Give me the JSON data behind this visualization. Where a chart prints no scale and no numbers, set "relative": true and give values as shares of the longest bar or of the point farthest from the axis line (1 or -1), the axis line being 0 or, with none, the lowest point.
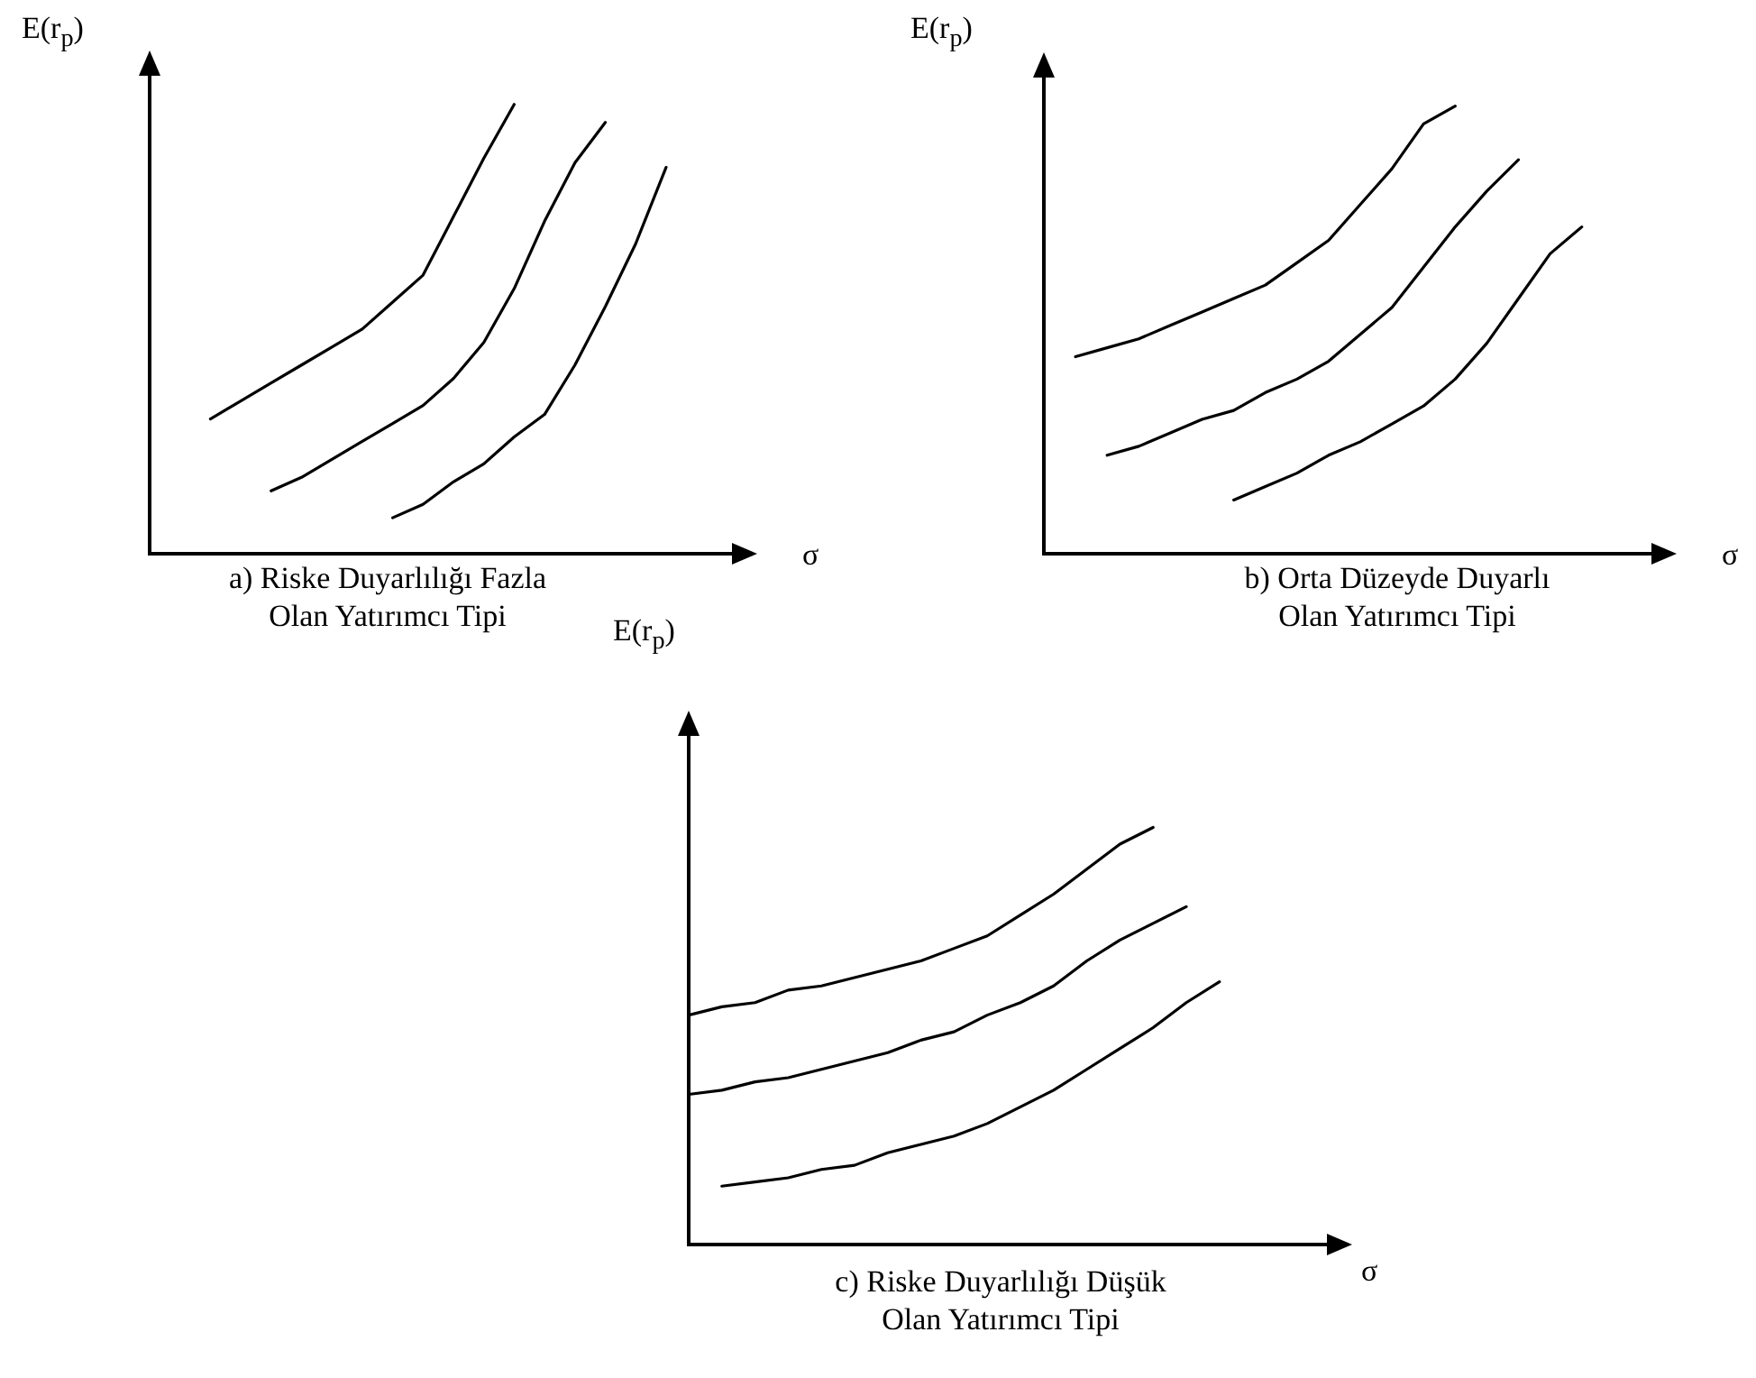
{
  "chart_data": [
    {
      "type": "line",
      "title": "a) Riske Duyarlılığı Fazla\nOlan Yatırımcı Tipi",
      "xlabel": "σ",
      "ylabel": "E(r$_{p}$)",
      "relative": true,
      "tick_labels": false,
      "marker": "none",
      "categories": [
        null,
        null,
        null,
        null,
        null,
        null,
        null,
        null,
        null,
        null,
        null,
        null,
        null,
        null,
        null,
        null,
        null,
        null,
        null,
        null,
        null
      ],
      "series": [
        {
          "color": "#000000",
          "values": [
            null,
            null,
            0.3,
            0.34,
            0.38,
            0.42,
            0.46,
            0.5,
            0.56,
            0.62,
            0.75,
            0.88,
            1.0,
            null,
            null,
            null,
            null,
            null,
            null,
            null,
            null
          ]
        },
        {
          "color": "#000000",
          "values": [
            null,
            null,
            null,
            null,
            0.14,
            0.17,
            0.21,
            0.25,
            0.29,
            0.33,
            0.39,
            0.47,
            0.59,
            0.74,
            0.87,
            0.96,
            null,
            null,
            null,
            null,
            null
          ]
        },
        {
          "color": "#000000",
          "values": [
            null,
            null,
            null,
            null,
            null,
            null,
            null,
            null,
            0.08,
            0.11,
            0.16,
            0.2,
            0.26,
            0.31,
            0.42,
            0.55,
            0.69,
            0.86,
            null,
            null,
            null
          ]
        }
      ]
    },
    {
      "type": "line",
      "title": "b) Orta Düzeyde Duyarlı\nOlan Yatırımcı Tipi",
      "xlabel": "σ",
      "ylabel": "E(r$_{p}$)",
      "relative": true,
      "tick_labels": false,
      "marker": "none",
      "categories": [
        null,
        null,
        null,
        null,
        null,
        null,
        null,
        null,
        null,
        null,
        null,
        null,
        null,
        null,
        null,
        null,
        null,
        null,
        null,
        null,
        null
      ],
      "series": [
        {
          "color": "#000000",
          "values": [
            null,
            0.44,
            0.46,
            0.48,
            0.51,
            0.54,
            0.57,
            0.6,
            0.65,
            0.7,
            0.78,
            0.86,
            0.96,
            1.0,
            null,
            null,
            null,
            null,
            null,
            null,
            null
          ]
        },
        {
          "color": "#000000",
          "values": [
            null,
            null,
            0.22,
            0.24,
            0.27,
            0.3,
            0.32,
            0.36,
            0.39,
            0.43,
            0.49,
            0.55,
            0.64,
            0.73,
            0.81,
            0.88,
            null,
            null,
            null,
            null,
            null
          ]
        },
        {
          "color": "#000000",
          "values": [
            null,
            null,
            null,
            null,
            null,
            null,
            0.12,
            0.15,
            0.18,
            0.22,
            0.25,
            0.29,
            0.33,
            0.39,
            0.47,
            0.57,
            0.67,
            0.73,
            null,
            null,
            null
          ]
        }
      ]
    },
    {
      "type": "line",
      "title": "c) Riske Duyarlılığı Düşük\nOlan Yatırımcı Tipi",
      "xlabel": "σ",
      "ylabel": "E(r$_{p}$)",
      "relative": true,
      "tick_labels": false,
      "marker": "none",
      "categories": [
        null,
        null,
        null,
        null,
        null,
        null,
        null,
        null,
        null,
        null,
        null,
        null,
        null,
        null,
        null,
        null,
        null,
        null,
        null,
        null,
        null
      ],
      "series": [
        {
          "color": "#000000",
          "values": [
            0.55,
            0.57,
            0.58,
            0.61,
            0.62,
            0.64,
            0.66,
            0.68,
            0.71,
            0.74,
            0.79,
            0.84,
            0.9,
            0.96,
            1.0,
            null,
            null,
            null,
            null,
            null,
            null
          ]
        },
        {
          "color": "#000000",
          "values": [
            0.36,
            0.37,
            0.39,
            0.4,
            0.42,
            0.44,
            0.46,
            0.49,
            0.51,
            0.55,
            0.58,
            0.62,
            0.68,
            0.73,
            0.77,
            0.81,
            null,
            null,
            null,
            null,
            null
          ]
        },
        {
          "color": "#000000",
          "values": [
            null,
            0.14,
            0.15,
            0.16,
            0.18,
            0.19,
            0.22,
            0.24,
            0.26,
            0.29,
            0.33,
            0.37,
            0.42,
            0.47,
            0.52,
            0.58,
            0.63,
            null,
            null,
            null,
            null
          ]
        }
      ]
    }
  ]
}
